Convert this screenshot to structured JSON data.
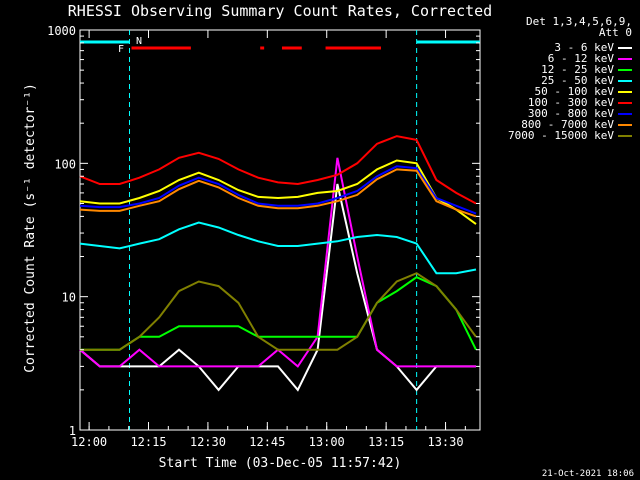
{
  "chart_data": {
    "type": "line",
    "title": "RHESSI Observing Summary Count Rates, Corrected",
    "xlabel": "Start Time (03-Dec-05 11:57:42)",
    "ylabel": "Corrected Count Rate (s⁻¹ detector⁻¹)",
    "yscale": "log",
    "ylim": [
      1,
      1000
    ],
    "xlim_minutes_from_start": [
      0,
      101
    ],
    "x_tick_labels": [
      "12:00",
      "12:15",
      "12:30",
      "12:45",
      "13:00",
      "13:15",
      "13:30"
    ],
    "x_tick_minutes": [
      2.3,
      17.3,
      32.3,
      47.3,
      62.3,
      77.3,
      92.3
    ],
    "y_tick_labels": [
      "1",
      "10",
      "100",
      "1000"
    ],
    "y_tick_values": [
      1,
      10,
      100,
      1000
    ],
    "legend_header": [
      "Det 1,3,4,5,6,9,",
      "Att 0"
    ],
    "flags": [
      {
        "label": "F",
        "color": "#ff0000"
      },
      {
        "label": "N",
        "color": "#00ffff"
      }
    ],
    "night_intervals_minutes": [
      [
        0,
        12.5
      ],
      [
        85,
        101
      ]
    ],
    "flare_intervals_minutes": [
      [
        13,
        28
      ],
      [
        45.5,
        46.5
      ],
      [
        51,
        56
      ],
      [
        62,
        76
      ]
    ],
    "series_x_minutes": [
      0,
      5,
      10,
      15,
      20,
      25,
      30,
      35,
      40,
      45,
      50,
      55,
      60,
      65,
      70,
      75,
      80,
      85,
      90,
      95,
      100
    ],
    "series": [
      {
        "name": "3 - 6 keV",
        "color": "#ffffff",
        "values": [
          4,
          3,
          3,
          3,
          3,
          4,
          3,
          2,
          3,
          3,
          3,
          2,
          4,
          70,
          15,
          4,
          3,
          2,
          3,
          3,
          3
        ]
      },
      {
        "name": "6 - 12 keV",
        "color": "#ff00ff",
        "values": [
          4,
          3,
          3,
          4,
          3,
          3,
          3,
          3,
          3,
          3,
          4,
          3,
          5,
          110,
          20,
          4,
          3,
          3,
          3,
          3,
          3
        ]
      },
      {
        "name": "12 - 25 keV",
        "color": "#00ff00",
        "values": [
          4,
          4,
          4,
          5,
          5,
          6,
          6,
          6,
          6,
          5,
          5,
          5,
          5,
          5,
          5,
          9,
          11,
          14,
          12,
          8,
          4
        ]
      },
      {
        "name": "25 - 50 keV",
        "color": "#00ffff",
        "values": [
          25,
          24,
          23,
          25,
          27,
          32,
          36,
          33,
          29,
          26,
          24,
          24,
          25,
          26,
          28,
          29,
          28,
          25,
          15,
          15,
          16
        ]
      },
      {
        "name": "50 - 100 keV",
        "color": "#ffff00",
        "values": [
          52,
          50,
          50,
          55,
          62,
          75,
          85,
          75,
          63,
          56,
          55,
          56,
          60,
          62,
          70,
          90,
          105,
          100,
          55,
          45,
          35
        ]
      },
      {
        "name": "100 - 300 keV",
        "color": "#ff0000",
        "values": [
          80,
          70,
          70,
          78,
          90,
          110,
          120,
          108,
          90,
          78,
          72,
          70,
          75,
          82,
          100,
          140,
          160,
          150,
          75,
          60,
          50
        ]
      },
      {
        "name": "300 - 800 keV",
        "color": "#0000ff",
        "values": [
          48,
          47,
          47,
          50,
          55,
          68,
          78,
          70,
          58,
          50,
          48,
          48,
          50,
          55,
          62,
          80,
          95,
          92,
          55,
          48,
          42
        ]
      },
      {
        "name": "800 - 7000 keV",
        "color": "#ff8800",
        "values": [
          45,
          44,
          44,
          48,
          52,
          64,
          74,
          66,
          55,
          48,
          46,
          46,
          48,
          52,
          58,
          76,
          90,
          88,
          52,
          45,
          40
        ]
      },
      {
        "name": "7000 - 15000 keV",
        "color": "#808000",
        "values": [
          4,
          4,
          4,
          5,
          7,
          11,
          13,
          12,
          9,
          5,
          4,
          4,
          4,
          4,
          5,
          9,
          13,
          15,
          12,
          8,
          5
        ]
      }
    ],
    "footer_date": "21-Oct-2021 18:06"
  }
}
